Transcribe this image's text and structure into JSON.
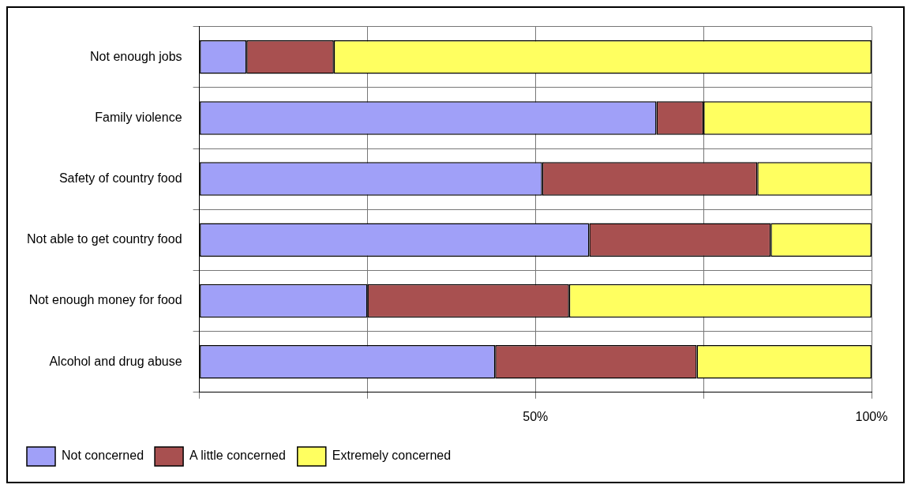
{
  "chart_data": {
    "type": "bar",
    "orientation": "horizontal",
    "stacked": true,
    "categories": [
      "Not enough jobs",
      "Family violence",
      "Safety of country food",
      "Not able to get country food",
      "Not enough money for food",
      "Alcohol and drug abuse"
    ],
    "series": [
      {
        "name": "Not concerned",
        "color": "#a0a0f8",
        "values": [
          7,
          68,
          51,
          58,
          25,
          44
        ]
      },
      {
        "name": "A little concerned",
        "color": "#a85050",
        "values": [
          13,
          7,
          32,
          27,
          30,
          30
        ]
      },
      {
        "name": "Extremely concerned",
        "color": "#ffff60",
        "values": [
          80,
          25,
          17,
          15,
          45,
          26
        ]
      }
    ],
    "xlim": [
      0,
      100
    ],
    "xticks": [
      {
        "value": 0,
        "label": null
      },
      {
        "value": 25,
        "label": null
      },
      {
        "value": 50,
        "label": "50%"
      },
      {
        "value": 75,
        "label": null
      },
      {
        "value": 100,
        "label": "100%"
      }
    ],
    "grid": true,
    "legend": "bottom"
  }
}
